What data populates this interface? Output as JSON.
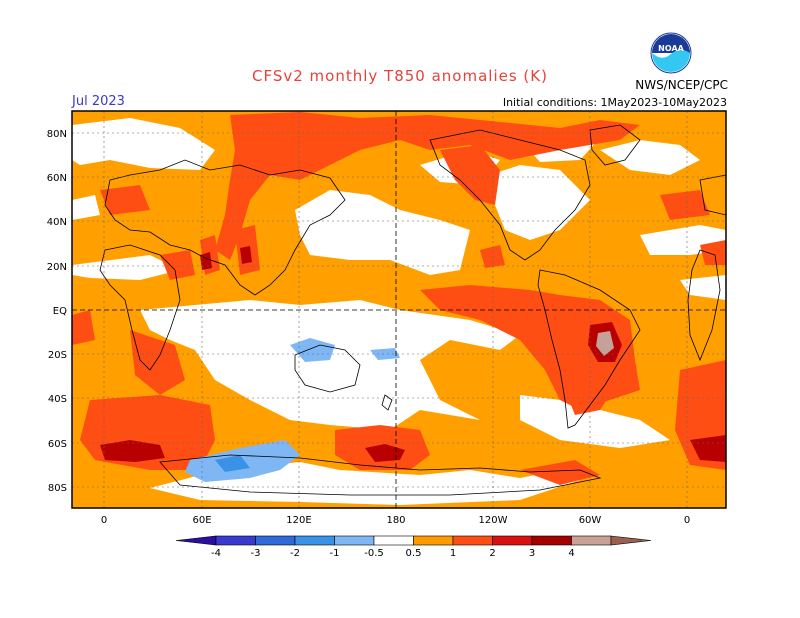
{
  "header": {
    "title": "CFSv2 monthly T850 anomalies (K)",
    "month": "Jul 2023",
    "initial_conditions": "Initial conditions: 1May2023-10May2023",
    "agency": "NWS/NCEP/CPC",
    "logo_text": "NOAA"
  },
  "map": {
    "lat_labels": [
      "80N",
      "60N",
      "40N",
      "20N",
      "EQ",
      "20S",
      "40S",
      "60S",
      "80S"
    ],
    "lon_labels": [
      "0",
      "60E",
      "120E",
      "180",
      "120W",
      "60W",
      "0"
    ]
  },
  "colorbar": {
    "ticks": [
      "-4",
      "-3",
      "-2",
      "-1",
      "-0.5",
      "0.5",
      "1",
      "2",
      "3",
      "4"
    ],
    "colors": [
      "#2a0fa0",
      "#3a3ad0",
      "#2f6ad8",
      "#3a92e8",
      "#7fb6f4",
      "#ffffff",
      "#ff9a00",
      "#ff4e14",
      "#d81010",
      "#a30000",
      "#caa196",
      "#9a6050"
    ]
  },
  "palette": {
    "weak_warm": "#ffa000",
    "warm": "#ff4e14",
    "hot": "#b80000",
    "very_hot": "#c4a199",
    "cool": "#7fb6f4",
    "cold": "#3a92e8"
  }
}
